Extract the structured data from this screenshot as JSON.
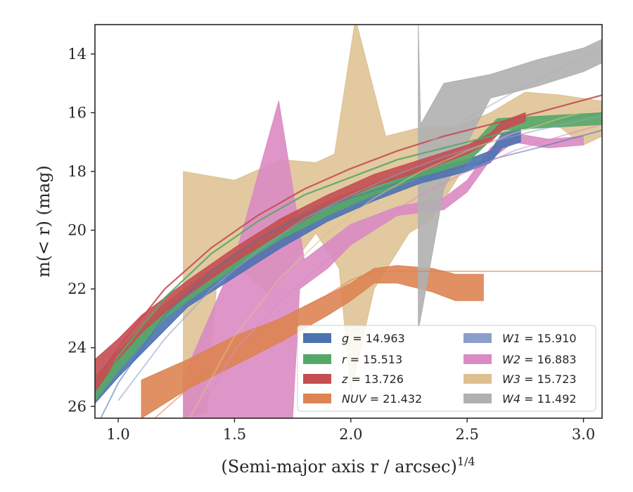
{
  "chart_data": {
    "type": "area",
    "xlabel": "(Semi-major axis r / arcsec)",
    "xlabel_sup": "1/4",
    "ylabel": "m(< r) (mag)",
    "xlim": [
      0.9,
      3.08
    ],
    "ylim": [
      26.4,
      13.0
    ],
    "y_inverted": true,
    "grid": false,
    "legend_placement": "lower-right",
    "x_ticks": [
      {
        "v": 1.0,
        "label": "1.0"
      },
      {
        "v": 1.5,
        "label": "1.5"
      },
      {
        "v": 2.0,
        "label": "2.0"
      },
      {
        "v": 2.5,
        "label": "2.5"
      },
      {
        "v": 3.0,
        "label": "3.0"
      }
    ],
    "y_ticks": [
      {
        "v": 14,
        "label": "14"
      },
      {
        "v": 16,
        "label": "16"
      },
      {
        "v": 18,
        "label": "18"
      },
      {
        "v": 20,
        "label": "20"
      },
      {
        "v": 22,
        "label": "22"
      },
      {
        "v": 24,
        "label": "24"
      },
      {
        "v": 26,
        "label": "26"
      }
    ],
    "series": [
      {
        "name": "g",
        "legend_value": "14.963",
        "color": "#4c72b0",
        "band_upper": [
          [
            0.9,
            25.3
          ],
          [
            1.0,
            24.4
          ],
          [
            1.1,
            23.5
          ],
          [
            1.2,
            22.7
          ],
          [
            1.3,
            22.0
          ],
          [
            1.5,
            21.0
          ],
          [
            1.7,
            20.0
          ],
          [
            1.9,
            19.2
          ],
          [
            2.1,
            18.6
          ],
          [
            2.3,
            18.0
          ],
          [
            2.5,
            17.6
          ],
          [
            2.6,
            17.3
          ],
          [
            2.65,
            16.7
          ],
          [
            2.73,
            16.5
          ]
        ],
        "band_lower": [
          [
            0.9,
            25.9
          ],
          [
            1.0,
            25.0
          ],
          [
            1.1,
            24.2
          ],
          [
            1.2,
            23.4
          ],
          [
            1.3,
            22.6
          ],
          [
            1.5,
            21.6
          ],
          [
            1.7,
            20.6
          ],
          [
            1.9,
            19.7
          ],
          [
            2.1,
            19.0
          ],
          [
            2.3,
            18.4
          ],
          [
            2.5,
            18.0
          ],
          [
            2.6,
            17.7
          ],
          [
            2.65,
            17.2
          ],
          [
            2.73,
            17.0
          ]
        ],
        "model": [
          [
            0.9,
            26.8
          ],
          [
            1.0,
            25.2
          ],
          [
            1.2,
            22.9
          ],
          [
            1.4,
            21.4
          ],
          [
            1.6,
            20.3
          ],
          [
            1.8,
            19.5
          ],
          [
            2.0,
            18.9
          ],
          [
            2.2,
            18.4
          ],
          [
            2.4,
            18.0
          ],
          [
            2.6,
            17.6
          ],
          [
            2.8,
            17.2
          ],
          [
            3.08,
            16.6
          ]
        ]
      },
      {
        "name": "r",
        "legend_value": "15.513",
        "color": "#55a868",
        "band_upper": [
          [
            0.9,
            25.0
          ],
          [
            1.0,
            24.1
          ],
          [
            1.1,
            23.3
          ],
          [
            1.2,
            22.5
          ],
          [
            1.3,
            21.9
          ],
          [
            1.5,
            20.8
          ],
          [
            1.7,
            19.8
          ],
          [
            1.9,
            19.0
          ],
          [
            2.1,
            18.4
          ],
          [
            2.3,
            17.8
          ],
          [
            2.5,
            17.3
          ],
          [
            2.58,
            16.6
          ],
          [
            2.63,
            16.2
          ],
          [
            3.08,
            16.0
          ]
        ],
        "band_lower": [
          [
            0.9,
            25.8
          ],
          [
            1.0,
            24.8
          ],
          [
            1.1,
            23.9
          ],
          [
            1.2,
            23.0
          ],
          [
            1.3,
            22.4
          ],
          [
            1.5,
            21.3
          ],
          [
            1.7,
            20.3
          ],
          [
            1.9,
            19.5
          ],
          [
            2.1,
            18.8
          ],
          [
            2.3,
            18.2
          ],
          [
            2.5,
            17.7
          ],
          [
            2.58,
            17.1
          ],
          [
            2.63,
            16.6
          ],
          [
            3.08,
            16.4
          ]
        ],
        "model": [
          [
            0.9,
            25.8
          ],
          [
            1.0,
            24.3
          ],
          [
            1.2,
            22.3
          ],
          [
            1.4,
            20.8
          ],
          [
            1.6,
            19.7
          ],
          [
            1.8,
            18.8
          ],
          [
            2.0,
            18.2
          ],
          [
            2.2,
            17.6
          ],
          [
            2.4,
            17.2
          ],
          [
            2.6,
            16.8
          ],
          [
            2.8,
            16.4
          ],
          [
            3.08,
            16.0
          ]
        ]
      },
      {
        "name": "z",
        "legend_value": "13.726",
        "color": "#c44e52",
        "band_upper": [
          [
            0.9,
            24.4
          ],
          [
            1.0,
            23.7
          ],
          [
            1.1,
            22.9
          ],
          [
            1.2,
            22.3
          ],
          [
            1.3,
            21.7
          ],
          [
            1.5,
            20.6
          ],
          [
            1.7,
            19.6
          ],
          [
            1.9,
            18.8
          ],
          [
            2.1,
            18.1
          ],
          [
            2.3,
            17.6
          ],
          [
            2.5,
            17.1
          ],
          [
            2.6,
            16.7
          ],
          [
            2.65,
            16.3
          ],
          [
            2.75,
            16.0
          ]
        ],
        "band_lower": [
          [
            0.9,
            25.5
          ],
          [
            1.0,
            24.4
          ],
          [
            1.1,
            23.5
          ],
          [
            1.2,
            22.8
          ],
          [
            1.3,
            22.2
          ],
          [
            1.5,
            21.1
          ],
          [
            1.7,
            20.1
          ],
          [
            1.9,
            19.2
          ],
          [
            2.1,
            18.5
          ],
          [
            2.3,
            18.0
          ],
          [
            2.5,
            17.4
          ],
          [
            2.6,
            17.0
          ],
          [
            2.65,
            16.6
          ],
          [
            2.75,
            16.3
          ]
        ],
        "model": [
          [
            0.9,
            25.2
          ],
          [
            1.0,
            24.0
          ],
          [
            1.2,
            22.0
          ],
          [
            1.4,
            20.6
          ],
          [
            1.6,
            19.5
          ],
          [
            1.8,
            18.6
          ],
          [
            2.0,
            17.9
          ],
          [
            2.2,
            17.3
          ],
          [
            2.4,
            16.8
          ],
          [
            2.6,
            16.4
          ],
          [
            2.8,
            16.0
          ],
          [
            3.08,
            15.4
          ]
        ]
      },
      {
        "name": "NUV",
        "legend_value": "21.432",
        "color": "#dd8452",
        "band_upper": [
          [
            1.1,
            25.1
          ],
          [
            1.3,
            24.4
          ],
          [
            1.5,
            23.6
          ],
          [
            1.7,
            23.0
          ],
          [
            1.9,
            22.2
          ],
          [
            2.0,
            21.8
          ],
          [
            2.1,
            21.3
          ],
          [
            2.2,
            21.2
          ],
          [
            2.35,
            21.3
          ],
          [
            2.45,
            21.5
          ],
          [
            2.57,
            21.5
          ]
        ],
        "band_lower": [
          [
            1.1,
            26.4
          ],
          [
            1.3,
            25.4
          ],
          [
            1.5,
            24.6
          ],
          [
            1.7,
            23.8
          ],
          [
            1.9,
            22.9
          ],
          [
            2.0,
            22.4
          ],
          [
            2.1,
            21.8
          ],
          [
            2.2,
            21.8
          ],
          [
            2.35,
            22.1
          ],
          [
            2.45,
            22.4
          ],
          [
            2.57,
            22.4
          ]
        ],
        "model": [
          [
            1.1,
            26.8
          ],
          [
            1.3,
            25.4
          ],
          [
            1.5,
            24.1
          ],
          [
            1.7,
            23.0
          ],
          [
            1.9,
            22.2
          ],
          [
            2.0,
            21.7
          ],
          [
            2.1,
            21.4
          ],
          [
            2.3,
            21.4
          ],
          [
            3.08,
            21.4
          ]
        ]
      },
      {
        "name": "W1",
        "legend_value": "15.910",
        "color": "#8c9ecc",
        "band_upper": [],
        "band_lower": [],
        "model": [
          [
            1.0,
            25.8
          ],
          [
            1.2,
            23.7
          ],
          [
            1.4,
            22.0
          ],
          [
            1.6,
            20.7
          ],
          [
            1.8,
            19.6
          ],
          [
            2.0,
            18.8
          ],
          [
            2.2,
            18.1
          ],
          [
            2.4,
            17.5
          ],
          [
            2.6,
            17.0
          ],
          [
            2.8,
            16.6
          ],
          [
            3.08,
            16.1
          ]
        ]
      },
      {
        "name": "W2",
        "legend_value": "16.883",
        "color": "#da8bc3",
        "band_upper": [
          [
            1.28,
            25.0
          ],
          [
            1.5,
            21.0
          ],
          [
            1.69,
            15.6
          ],
          [
            1.8,
            21.0
          ],
          [
            1.9,
            20.4
          ],
          [
            2.0,
            19.8
          ],
          [
            2.2,
            19.2
          ],
          [
            2.4,
            18.9
          ],
          [
            2.5,
            18.3
          ],
          [
            2.6,
            17.2
          ],
          [
            2.7,
            16.7
          ],
          [
            2.85,
            16.9
          ],
          [
            3.0,
            16.8
          ]
        ],
        "band_lower": [
          [
            1.28,
            26.4
          ],
          [
            1.75,
            26.4
          ],
          [
            1.78,
            22.0
          ],
          [
            1.9,
            21.3
          ],
          [
            2.0,
            20.5
          ],
          [
            2.2,
            19.5
          ],
          [
            2.4,
            19.3
          ],
          [
            2.5,
            18.7
          ],
          [
            2.6,
            17.6
          ],
          [
            2.7,
            17.0
          ],
          [
            2.85,
            17.2
          ],
          [
            3.0,
            17.1
          ]
        ],
        "model": [
          [
            1.3,
            26.8
          ],
          [
            1.5,
            24.1
          ],
          [
            1.7,
            22.4
          ],
          [
            1.9,
            21.0
          ],
          [
            2.1,
            19.8
          ],
          [
            2.3,
            18.8
          ],
          [
            2.5,
            18.0
          ],
          [
            2.7,
            17.3
          ],
          [
            2.9,
            16.8
          ],
          [
            3.08,
            16.4
          ]
        ]
      },
      {
        "name": "W3",
        "legend_value": "15.723",
        "color": "#ddc08f",
        "band_upper": [
          [
            1.28,
            18.0
          ],
          [
            1.5,
            18.3
          ],
          [
            1.7,
            17.6
          ],
          [
            1.85,
            17.7
          ],
          [
            1.93,
            17.4
          ],
          [
            2.02,
            12.8
          ],
          [
            2.15,
            16.8
          ],
          [
            2.3,
            16.5
          ],
          [
            2.45,
            16.5
          ],
          [
            2.6,
            16.0
          ],
          [
            2.75,
            15.3
          ],
          [
            2.9,
            15.4
          ],
          [
            3.08,
            15.6
          ]
        ],
        "band_lower": [
          [
            1.28,
            26.4
          ],
          [
            1.38,
            26.2
          ],
          [
            1.43,
            21.1
          ],
          [
            1.55,
            21.5
          ],
          [
            1.65,
            22.2
          ],
          [
            1.85,
            20.1
          ],
          [
            1.95,
            21.3
          ],
          [
            2.0,
            25.5
          ],
          [
            2.1,
            22.0
          ],
          [
            2.25,
            20.1
          ],
          [
            2.35,
            19.6
          ],
          [
            2.5,
            17.7
          ],
          [
            2.6,
            16.8
          ],
          [
            2.75,
            16.4
          ],
          [
            2.9,
            16.5
          ],
          [
            3.0,
            17.1
          ],
          [
            3.08,
            16.8
          ]
        ],
        "model": [
          [
            1.3,
            26.5
          ],
          [
            1.5,
            23.6
          ],
          [
            1.7,
            21.6
          ],
          [
            1.9,
            20.1
          ],
          [
            2.1,
            18.9
          ],
          [
            2.3,
            18.0
          ],
          [
            2.5,
            17.3
          ],
          [
            2.7,
            16.7
          ],
          [
            2.9,
            16.2
          ],
          [
            3.08,
            15.8
          ]
        ]
      },
      {
        "name": "W4",
        "legend_value": "11.492",
        "color": "#b0b0b0",
        "band_upper": [
          [
            2.29,
            13.0
          ],
          [
            2.3,
            16.4
          ],
          [
            2.4,
            15.0
          ],
          [
            2.6,
            14.7
          ],
          [
            2.8,
            14.2
          ],
          [
            3.0,
            13.8
          ],
          [
            3.08,
            13.5
          ]
        ],
        "band_lower": [
          [
            2.29,
            23.4
          ],
          [
            2.3,
            23.0
          ],
          [
            2.4,
            18.6
          ],
          [
            2.6,
            15.5
          ],
          [
            2.8,
            15.1
          ],
          [
            3.0,
            14.6
          ],
          [
            3.08,
            14.3
          ]
        ],
        "model": [
          [
            2.3,
            17.2
          ],
          [
            2.5,
            16.2
          ],
          [
            2.7,
            15.3
          ],
          [
            2.9,
            14.5
          ],
          [
            3.08,
            13.8
          ]
        ]
      }
    ]
  }
}
